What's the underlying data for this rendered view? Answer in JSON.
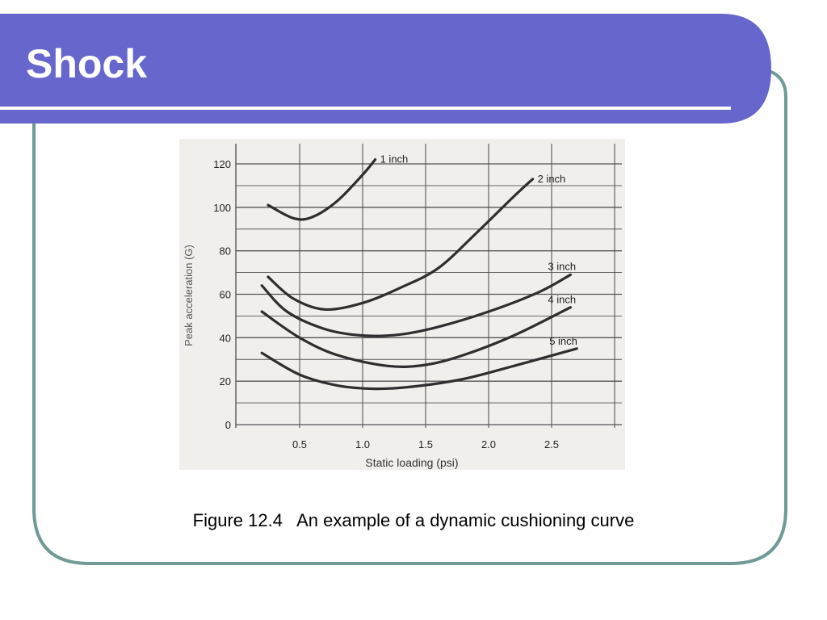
{
  "slide": {
    "title": "Shock",
    "caption_number": "Figure 12.4",
    "caption_text": "An example of a dynamic cushioning curve"
  },
  "colors": {
    "title_band": "#6666cc",
    "frame_border": "#6f9a97",
    "paper": "#f1efec",
    "grid": "#555555",
    "curve": "#2e2e2e"
  },
  "chart_data": {
    "type": "line",
    "title": "",
    "xlabel": "Static loading (psi)",
    "ylabel": "Peak acceleration (G)",
    "xlim": [
      0,
      2.7
    ],
    "ylim": [
      0,
      120
    ],
    "x_ticks": [
      "0.5",
      "1.0",
      "1.5",
      "2.0",
      "2.5"
    ],
    "x_tick_values": [
      0.5,
      1.0,
      1.5,
      2.0,
      2.5
    ],
    "y_ticks": [
      "0",
      "20",
      "40",
      "60",
      "80",
      "100",
      "120"
    ],
    "y_tick_values": [
      0,
      20,
      40,
      60,
      80,
      100,
      120
    ],
    "grid": true,
    "legend": "labels at line ends",
    "series": [
      {
        "name": "1 inch",
        "points": [
          [
            0.25,
            101
          ],
          [
            0.45,
            95
          ],
          [
            0.6,
            95.5
          ],
          [
            0.8,
            103
          ],
          [
            1.0,
            115
          ],
          [
            1.1,
            122
          ]
        ]
      },
      {
        "name": "2 inch",
        "points": [
          [
            0.25,
            68
          ],
          [
            0.45,
            58
          ],
          [
            0.7,
            53
          ],
          [
            1.0,
            56
          ],
          [
            1.3,
            63
          ],
          [
            1.6,
            72
          ],
          [
            1.9,
            88
          ],
          [
            2.2,
            105
          ],
          [
            2.35,
            113
          ]
        ]
      },
      {
        "name": "3 inch",
        "points": [
          [
            0.2,
            64
          ],
          [
            0.4,
            52
          ],
          [
            0.7,
            44
          ],
          [
            1.0,
            41
          ],
          [
            1.3,
            41.5
          ],
          [
            1.6,
            45
          ],
          [
            2.0,
            52
          ],
          [
            2.4,
            61
          ],
          [
            2.65,
            69
          ]
        ]
      },
      {
        "name": "4 inch",
        "points": [
          [
            0.2,
            52
          ],
          [
            0.5,
            40
          ],
          [
            0.8,
            32
          ],
          [
            1.2,
            27
          ],
          [
            1.5,
            27.5
          ],
          [
            1.8,
            32
          ],
          [
            2.2,
            41
          ],
          [
            2.65,
            54
          ]
        ]
      },
      {
        "name": "5 inch",
        "points": [
          [
            0.2,
            33
          ],
          [
            0.5,
            23
          ],
          [
            0.8,
            18
          ],
          [
            1.1,
            16.5
          ],
          [
            1.4,
            17.5
          ],
          [
            1.8,
            21
          ],
          [
            2.2,
            27
          ],
          [
            2.7,
            35
          ]
        ]
      }
    ]
  }
}
